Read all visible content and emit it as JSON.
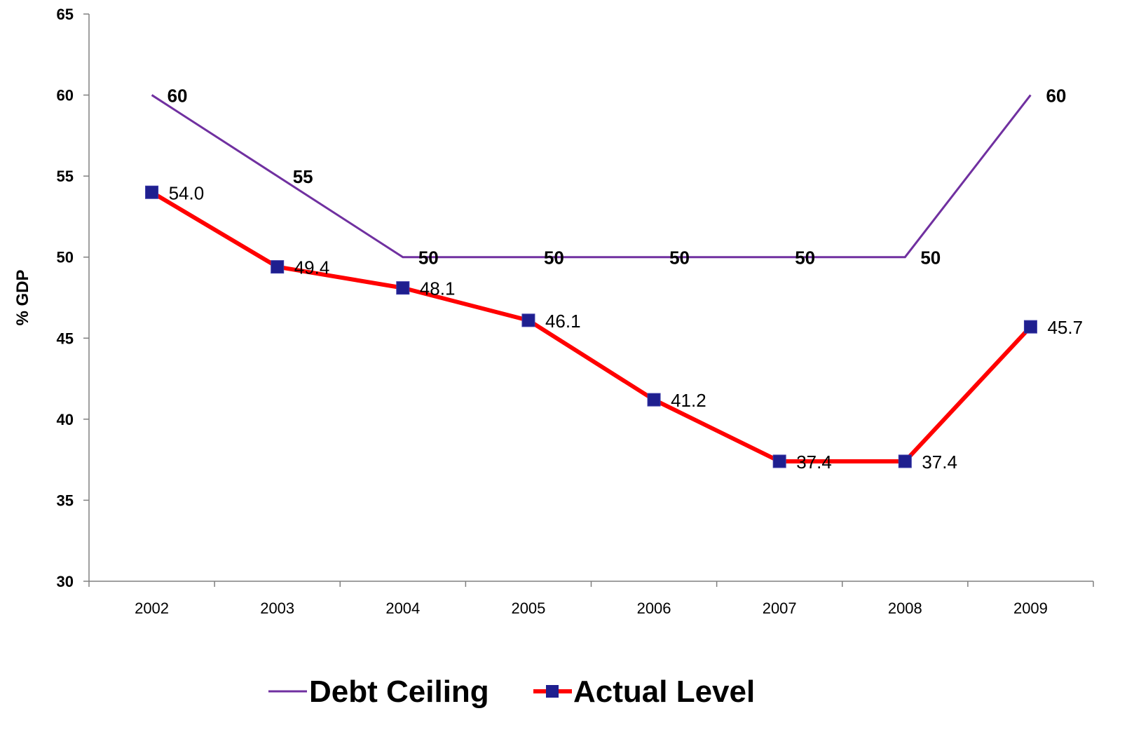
{
  "chart_data": {
    "type": "line",
    "categories": [
      "2002",
      "2003",
      "2004",
      "2005",
      "2006",
      "2007",
      "2008",
      "2009"
    ],
    "series": [
      {
        "name": "Debt Ceiling",
        "values": [
          60,
          55,
          50,
          50,
          50,
          50,
          50,
          60
        ],
        "labels": [
          "60",
          "55",
          "50",
          "50",
          "50",
          "50",
          "50",
          "60"
        ],
        "color": "#7030a0",
        "marker": "none"
      },
      {
        "name": "Actual Level",
        "values": [
          54.0,
          49.4,
          48.1,
          46.1,
          41.2,
          37.4,
          37.4,
          45.7
        ],
        "labels": [
          "54.0",
          "49.4",
          "48.1",
          "46.1",
          "41.2",
          "37.4",
          "37.4",
          "45.7"
        ],
        "color": "#ff0000",
        "marker": "square",
        "marker_color": "#1f1f8f"
      }
    ],
    "ylabel": "% GDP",
    "xlabel": "",
    "ylim": [
      30,
      65
    ],
    "yticks": [
      "30",
      "35",
      "40",
      "45",
      "50",
      "55",
      "60",
      "65"
    ],
    "grid": false,
    "legend_position": "bottom"
  }
}
